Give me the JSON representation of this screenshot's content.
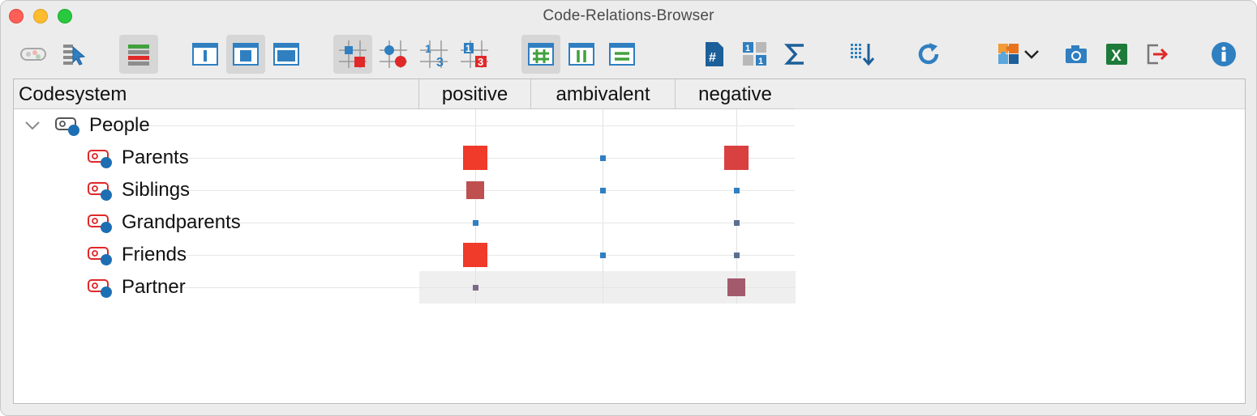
{
  "window": {
    "title": "Code-Relations-Browser"
  },
  "toolbar": {
    "buttons": [
      {
        "name": "toggle-code-color-icon"
      },
      {
        "name": "select-codes-icon"
      },
      {
        "name": "color-bars-icon",
        "active": true
      },
      {
        "name": "layout-narrow-icon"
      },
      {
        "name": "layout-medium-icon",
        "active": true
      },
      {
        "name": "layout-wide-icon"
      },
      {
        "name": "squares-view-icon",
        "active": true
      },
      {
        "name": "circles-view-icon"
      },
      {
        "name": "numbers-view-icon"
      },
      {
        "name": "numbers-colored-view-icon"
      },
      {
        "name": "grid-hash-icon",
        "active": true
      },
      {
        "name": "grid-columns-icon"
      },
      {
        "name": "grid-rows-icon"
      },
      {
        "name": "document-hash-icon"
      },
      {
        "name": "matrix-numbers-icon"
      },
      {
        "name": "sum-icon"
      },
      {
        "name": "sort-icon"
      },
      {
        "name": "refresh-icon"
      },
      {
        "name": "puzzle-export-icon"
      },
      {
        "name": "camera-icon"
      },
      {
        "name": "excel-icon"
      },
      {
        "name": "export-icon"
      },
      {
        "name": "info-icon"
      }
    ]
  },
  "table": {
    "code_header": "Codesystem",
    "columns": [
      "positive",
      "ambivalent",
      "negative"
    ],
    "parent": {
      "label": "People"
    },
    "rows": [
      {
        "label": "Parents",
        "values": [
          3,
          1,
          3
        ],
        "colors": [
          "#f03a2a",
          "#2f7fc1",
          "#d94040"
        ]
      },
      {
        "label": "Siblings",
        "values": [
          2,
          1,
          1
        ],
        "colors": [
          "#bf5050",
          "#2f7fc1",
          "#2f7fc1"
        ]
      },
      {
        "label": "Grandparents",
        "values": [
          1,
          0,
          1
        ],
        "colors": [
          "#2f7fc1",
          "",
          "#5b6f90"
        ]
      },
      {
        "label": "Friends",
        "values": [
          3,
          1,
          1
        ],
        "colors": [
          "#f03a2a",
          "#2f7fc1",
          "#5b6f90"
        ]
      },
      {
        "label": "Partner",
        "values": [
          1,
          0,
          2
        ],
        "colors": [
          "#7d6a86",
          "",
          "#a25a6c"
        ],
        "highlighted": true
      }
    ]
  }
}
